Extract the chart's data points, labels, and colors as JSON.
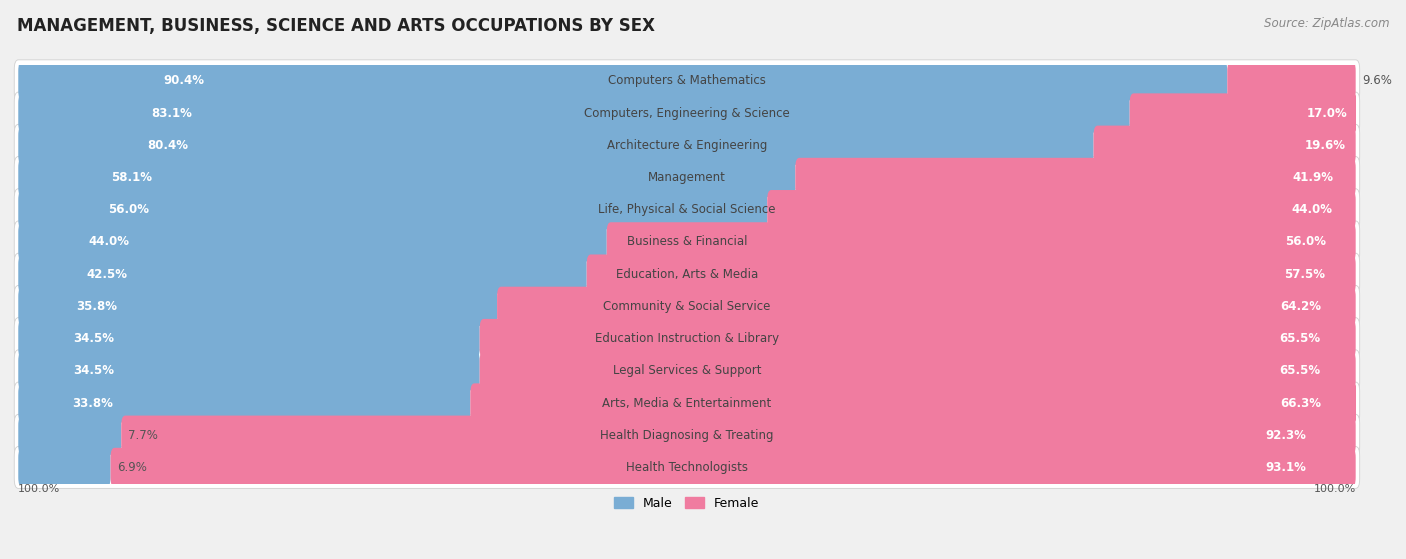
{
  "title": "MANAGEMENT, BUSINESS, SCIENCE AND ARTS OCCUPATIONS BY SEX",
  "source": "Source: ZipAtlas.com",
  "categories": [
    "Computers & Mathematics",
    "Computers, Engineering & Science",
    "Architecture & Engineering",
    "Management",
    "Life, Physical & Social Science",
    "Business & Financial",
    "Education, Arts & Media",
    "Community & Social Service",
    "Education Instruction & Library",
    "Legal Services & Support",
    "Arts, Media & Entertainment",
    "Health Diagnosing & Treating",
    "Health Technologists"
  ],
  "male_pct": [
    90.4,
    83.1,
    80.4,
    58.1,
    56.0,
    44.0,
    42.5,
    35.8,
    34.5,
    34.5,
    33.8,
    7.7,
    6.9
  ],
  "female_pct": [
    9.6,
    17.0,
    19.6,
    41.9,
    44.0,
    56.0,
    57.5,
    64.2,
    65.5,
    65.5,
    66.3,
    92.3,
    93.1
  ],
  "male_color": "#7aadd4",
  "female_color": "#f07ca0",
  "background_color": "#f0f0f0",
  "row_bg_color": "#ffffff",
  "row_border_color": "#d0d0d0",
  "male_label_inside_color": "#ffffff",
  "male_label_outside_color": "#555555",
  "female_label_inside_color": "#ffffff",
  "female_label_outside_color": "#555555",
  "category_color": "#444444",
  "legend_male": "Male",
  "legend_female": "Female",
  "title_fontsize": 12,
  "label_fontsize": 8.5,
  "category_fontsize": 8.5,
  "source_fontsize": 8.5,
  "inside_label_threshold_male": 12,
  "inside_label_threshold_female": 12
}
